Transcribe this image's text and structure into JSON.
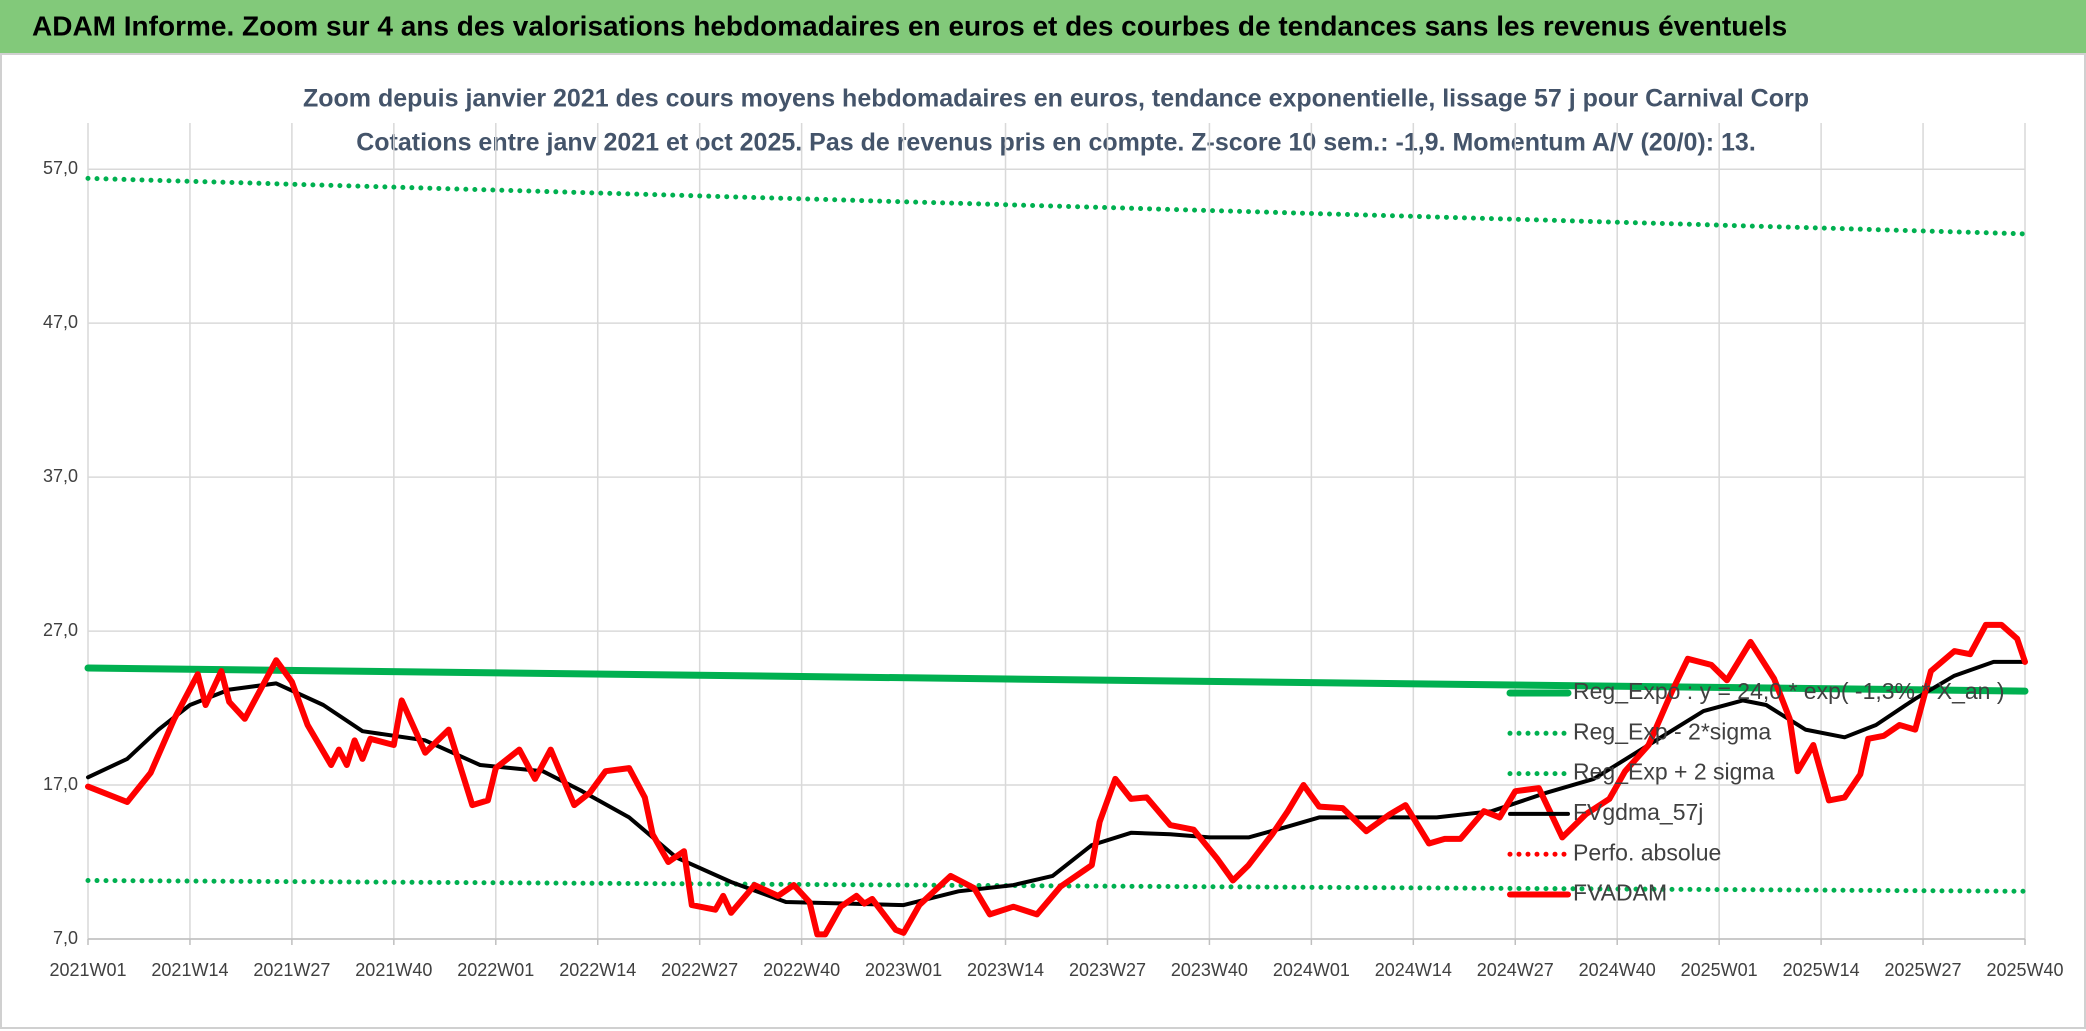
{
  "header": {
    "title": "ADAM Informe. Zoom sur 4 ans des valorisations hebdomadaires en euros et des courbes de tendances sans les revenus éventuels"
  },
  "chart_data": {
    "type": "line",
    "title": "Zoom depuis janvier 2021 des cours moyens hebdomadaires en euros, tendance exponentielle, lissage 57 j pour Carnival Corp",
    "subtitle": "Cotations entre janv 2021 et oct 2025. Pas de revenus pris en compte. Z-score 10 sem.: -1,9. Momentum A/V (20/0): 13.",
    "xlim": [
      0,
      247
    ],
    "xticks": [
      {
        "value": 0,
        "label": "2021W01"
      },
      {
        "value": 13,
        "label": "2021W14"
      },
      {
        "value": 26,
        "label": "2021W27"
      },
      {
        "value": 39,
        "label": "2021W40"
      },
      {
        "value": 52,
        "label": "2022W01"
      },
      {
        "value": 65,
        "label": "2022W14"
      },
      {
        "value": 78,
        "label": "2022W27"
      },
      {
        "value": 91,
        "label": "2022W40"
      },
      {
        "value": 104,
        "label": "2023W01"
      },
      {
        "value": 117,
        "label": "2023W14"
      },
      {
        "value": 130,
        "label": "2023W27"
      },
      {
        "value": 143,
        "label": "2023W40"
      },
      {
        "value": 156,
        "label": "2024W01"
      },
      {
        "value": 169,
        "label": "2024W14"
      },
      {
        "value": 182,
        "label": "2024W27"
      },
      {
        "value": 195,
        "label": "2024W40"
      },
      {
        "value": 208,
        "label": "2025W01"
      },
      {
        "value": 221,
        "label": "2025W14"
      },
      {
        "value": 234,
        "label": "2025W27"
      },
      {
        "value": 247,
        "label": "2025W40"
      }
    ],
    "ylim": [
      7,
      60
    ],
    "yticks": [
      {
        "value": 7,
        "label": "7,0"
      },
      {
        "value": 17,
        "label": "17,0"
      },
      {
        "value": 27,
        "label": "27,0"
      },
      {
        "value": 37,
        "label": "37,0"
      },
      {
        "value": 47,
        "label": "47,0"
      },
      {
        "value": 57,
        "label": "57,0"
      }
    ],
    "grid": true,
    "legend": "right",
    "series": [
      {
        "name": "Reg_Expo : y = 24,0 * exp( -1,3% * X_an )",
        "color": "#00b050",
        "line_style": "solid",
        "x": [
          0,
          247
        ],
        "values": [
          24.6,
          23.1
        ]
      },
      {
        "name": "Reg_Exp - 2*sigma",
        "color": "#00b050",
        "line_style": "dotted",
        "x": [
          0,
          247
        ],
        "values": [
          10.8,
          10.1
        ]
      },
      {
        "name": "Reg_Exp + 2 sigma",
        "color": "#00b050",
        "line_style": "dotted",
        "x": [
          0,
          247
        ],
        "values": [
          56.4,
          52.8
        ]
      },
      {
        "name": "FVgdma_57j",
        "color": "#000000",
        "line_style": "solid",
        "x": [
          0,
          5,
          9,
          13,
          18,
          24,
          30,
          35,
          43,
          50,
          58,
          63,
          69,
          75,
          82,
          89,
          97,
          104,
          111,
          118,
          123,
          128,
          133,
          138,
          143,
          148,
          153,
          157,
          165,
          172,
          179,
          186,
          192,
          199,
          206,
          211,
          214,
          219,
          224,
          228,
          233,
          238,
          243,
          247
        ],
        "values": [
          17.5,
          18.7,
          20.6,
          22.2,
          23.2,
          23.6,
          22.2,
          20.5,
          19.9,
          18.3,
          17.9,
          16.6,
          14.9,
          12.3,
          10.7,
          9.4,
          9.3,
          9.2,
          10.1,
          10.5,
          11.1,
          13.1,
          13.9,
          13.8,
          13.6,
          13.6,
          14.3,
          14.9,
          14.9,
          14.9,
          15.3,
          16.5,
          17.4,
          19.6,
          21.8,
          22.5,
          22.2,
          20.6,
          20.1,
          20.9,
          22.6,
          24.1,
          25.0,
          25.0
        ]
      },
      {
        "name": "Perfo. absolue",
        "color": "#ff0000",
        "line_style": "dotted",
        "x": [],
        "values": []
      },
      {
        "name": "FVADAM",
        "color": "#ff0000",
        "line_style": "solid",
        "x": [
          0,
          5,
          8,
          11,
          14,
          15,
          17,
          18,
          20,
          24,
          26,
          28,
          31,
          32,
          33,
          34,
          35,
          36,
          39,
          40,
          43,
          46,
          49,
          51,
          52,
          55,
          57,
          59,
          62,
          64,
          66,
          69,
          71,
          72,
          74,
          76,
          77,
          80,
          81,
          82,
          85,
          88,
          90,
          92,
          93,
          94,
          96,
          98,
          99,
          100,
          103,
          104,
          106,
          110,
          113,
          115,
          118,
          121,
          124,
          128,
          129,
          131,
          133,
          135,
          138,
          141,
          144,
          146,
          148,
          151,
          153,
          155,
          157,
          160,
          163,
          166,
          168,
          171,
          173,
          175,
          178,
          180,
          182,
          185,
          188,
          191,
          194,
          196,
          199,
          202,
          204,
          207,
          209,
          212,
          215,
          217,
          218,
          220,
          222,
          224,
          226,
          227,
          229,
          231,
          233,
          235,
          238,
          240,
          242,
          244,
          246,
          247
        ],
        "values": [
          16.9,
          15.9,
          17.8,
          21.3,
          24.2,
          22.2,
          24.4,
          22.4,
          21.3,
          25.1,
          23.7,
          20.9,
          18.3,
          19.3,
          18.3,
          19.9,
          18.7,
          20.0,
          19.6,
          22.5,
          19.1,
          20.6,
          15.7,
          16.0,
          18.1,
          19.3,
          17.4,
          19.3,
          15.7,
          16.5,
          17.9,
          18.1,
          16.2,
          13.8,
          12.0,
          12.7,
          9.2,
          8.9,
          9.8,
          8.7,
          10.5,
          9.8,
          10.5,
          9.4,
          7.3,
          7.3,
          9.1,
          9.8,
          9.3,
          9.6,
          7.6,
          7.4,
          9.2,
          11.1,
          10.3,
          8.6,
          9.1,
          8.6,
          10.4,
          11.8,
          14.6,
          17.4,
          16.1,
          16.2,
          14.4,
          14.1,
          12.2,
          10.8,
          11.8,
          13.8,
          15.3,
          17.0,
          15.6,
          15.5,
          14.0,
          15.1,
          15.7,
          13.2,
          13.5,
          13.5,
          15.3,
          14.9,
          16.6,
          16.8,
          13.6,
          15.1,
          16.1,
          17.9,
          19.6,
          23.1,
          25.2,
          24.8,
          23.8,
          26.3,
          23.9,
          21.3,
          17.9,
          19.6,
          16.0,
          16.2,
          17.7,
          20.0,
          20.2,
          20.9,
          20.6,
          24.4,
          25.7,
          25.5,
          27.4,
          27.4,
          26.5,
          25.0
        ]
      }
    ]
  }
}
